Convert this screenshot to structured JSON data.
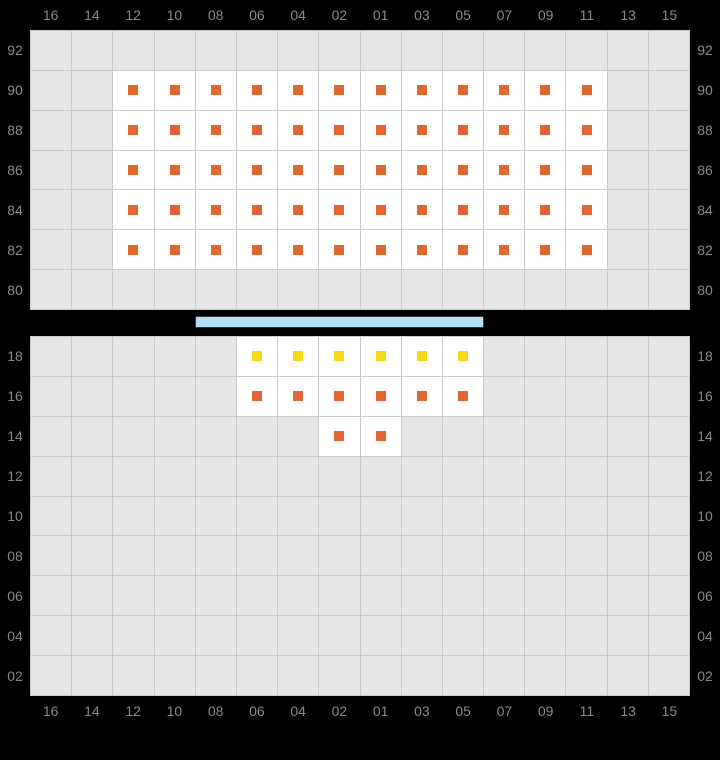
{
  "columns": [
    "16",
    "14",
    "12",
    "10",
    "08",
    "06",
    "04",
    "02",
    "01",
    "03",
    "05",
    "07",
    "09",
    "11",
    "13",
    "15"
  ],
  "top_rows": [
    "92",
    "90",
    "88",
    "86",
    "84",
    "82",
    "80"
  ],
  "bottom_rows": [
    "18",
    "16",
    "14",
    "12",
    "10",
    "08",
    "06",
    "04",
    "02"
  ],
  "colors": {
    "orange": "#e0672f",
    "yellow": "#f5d817",
    "empty_bg": "#e6e6e6",
    "seat_bg": "#ffffff",
    "grid_line": "#cccccc",
    "label_text": "#888888",
    "wing_fill": "#b3e0f7",
    "wing_border": "#333333",
    "page_bg": "#000000"
  },
  "label_fontsize": 14,
  "square_size": 10,
  "wing": {
    "col_start": 5,
    "col_span": 7
  },
  "top_seats": [
    {
      "row": "90",
      "cols": [
        "12",
        "10",
        "08",
        "06",
        "04",
        "02",
        "01",
        "03",
        "05",
        "07",
        "09",
        "11"
      ],
      "color": "orange"
    },
    {
      "row": "88",
      "cols": [
        "12",
        "10",
        "08",
        "06",
        "04",
        "02",
        "01",
        "03",
        "05",
        "07",
        "09",
        "11"
      ],
      "color": "orange"
    },
    {
      "row": "86",
      "cols": [
        "12",
        "10",
        "08",
        "06",
        "04",
        "02",
        "01",
        "03",
        "05",
        "07",
        "09",
        "11"
      ],
      "color": "orange"
    },
    {
      "row": "84",
      "cols": [
        "12",
        "10",
        "08",
        "06",
        "04",
        "02",
        "01",
        "03",
        "05",
        "07",
        "09",
        "11"
      ],
      "color": "orange"
    },
    {
      "row": "82",
      "cols": [
        "12",
        "10",
        "08",
        "06",
        "04",
        "02",
        "01",
        "03",
        "05",
        "07",
        "09",
        "11"
      ],
      "color": "orange"
    }
  ],
  "bottom_seats": [
    {
      "row": "18",
      "cols": [
        "06",
        "04",
        "02",
        "01",
        "03",
        "05"
      ],
      "color": "yellow"
    },
    {
      "row": "16",
      "cols": [
        "06",
        "04",
        "02",
        "01",
        "03",
        "05"
      ],
      "color": "orange"
    },
    {
      "row": "14",
      "cols": [
        "02",
        "01"
      ],
      "color": "orange"
    }
  ]
}
